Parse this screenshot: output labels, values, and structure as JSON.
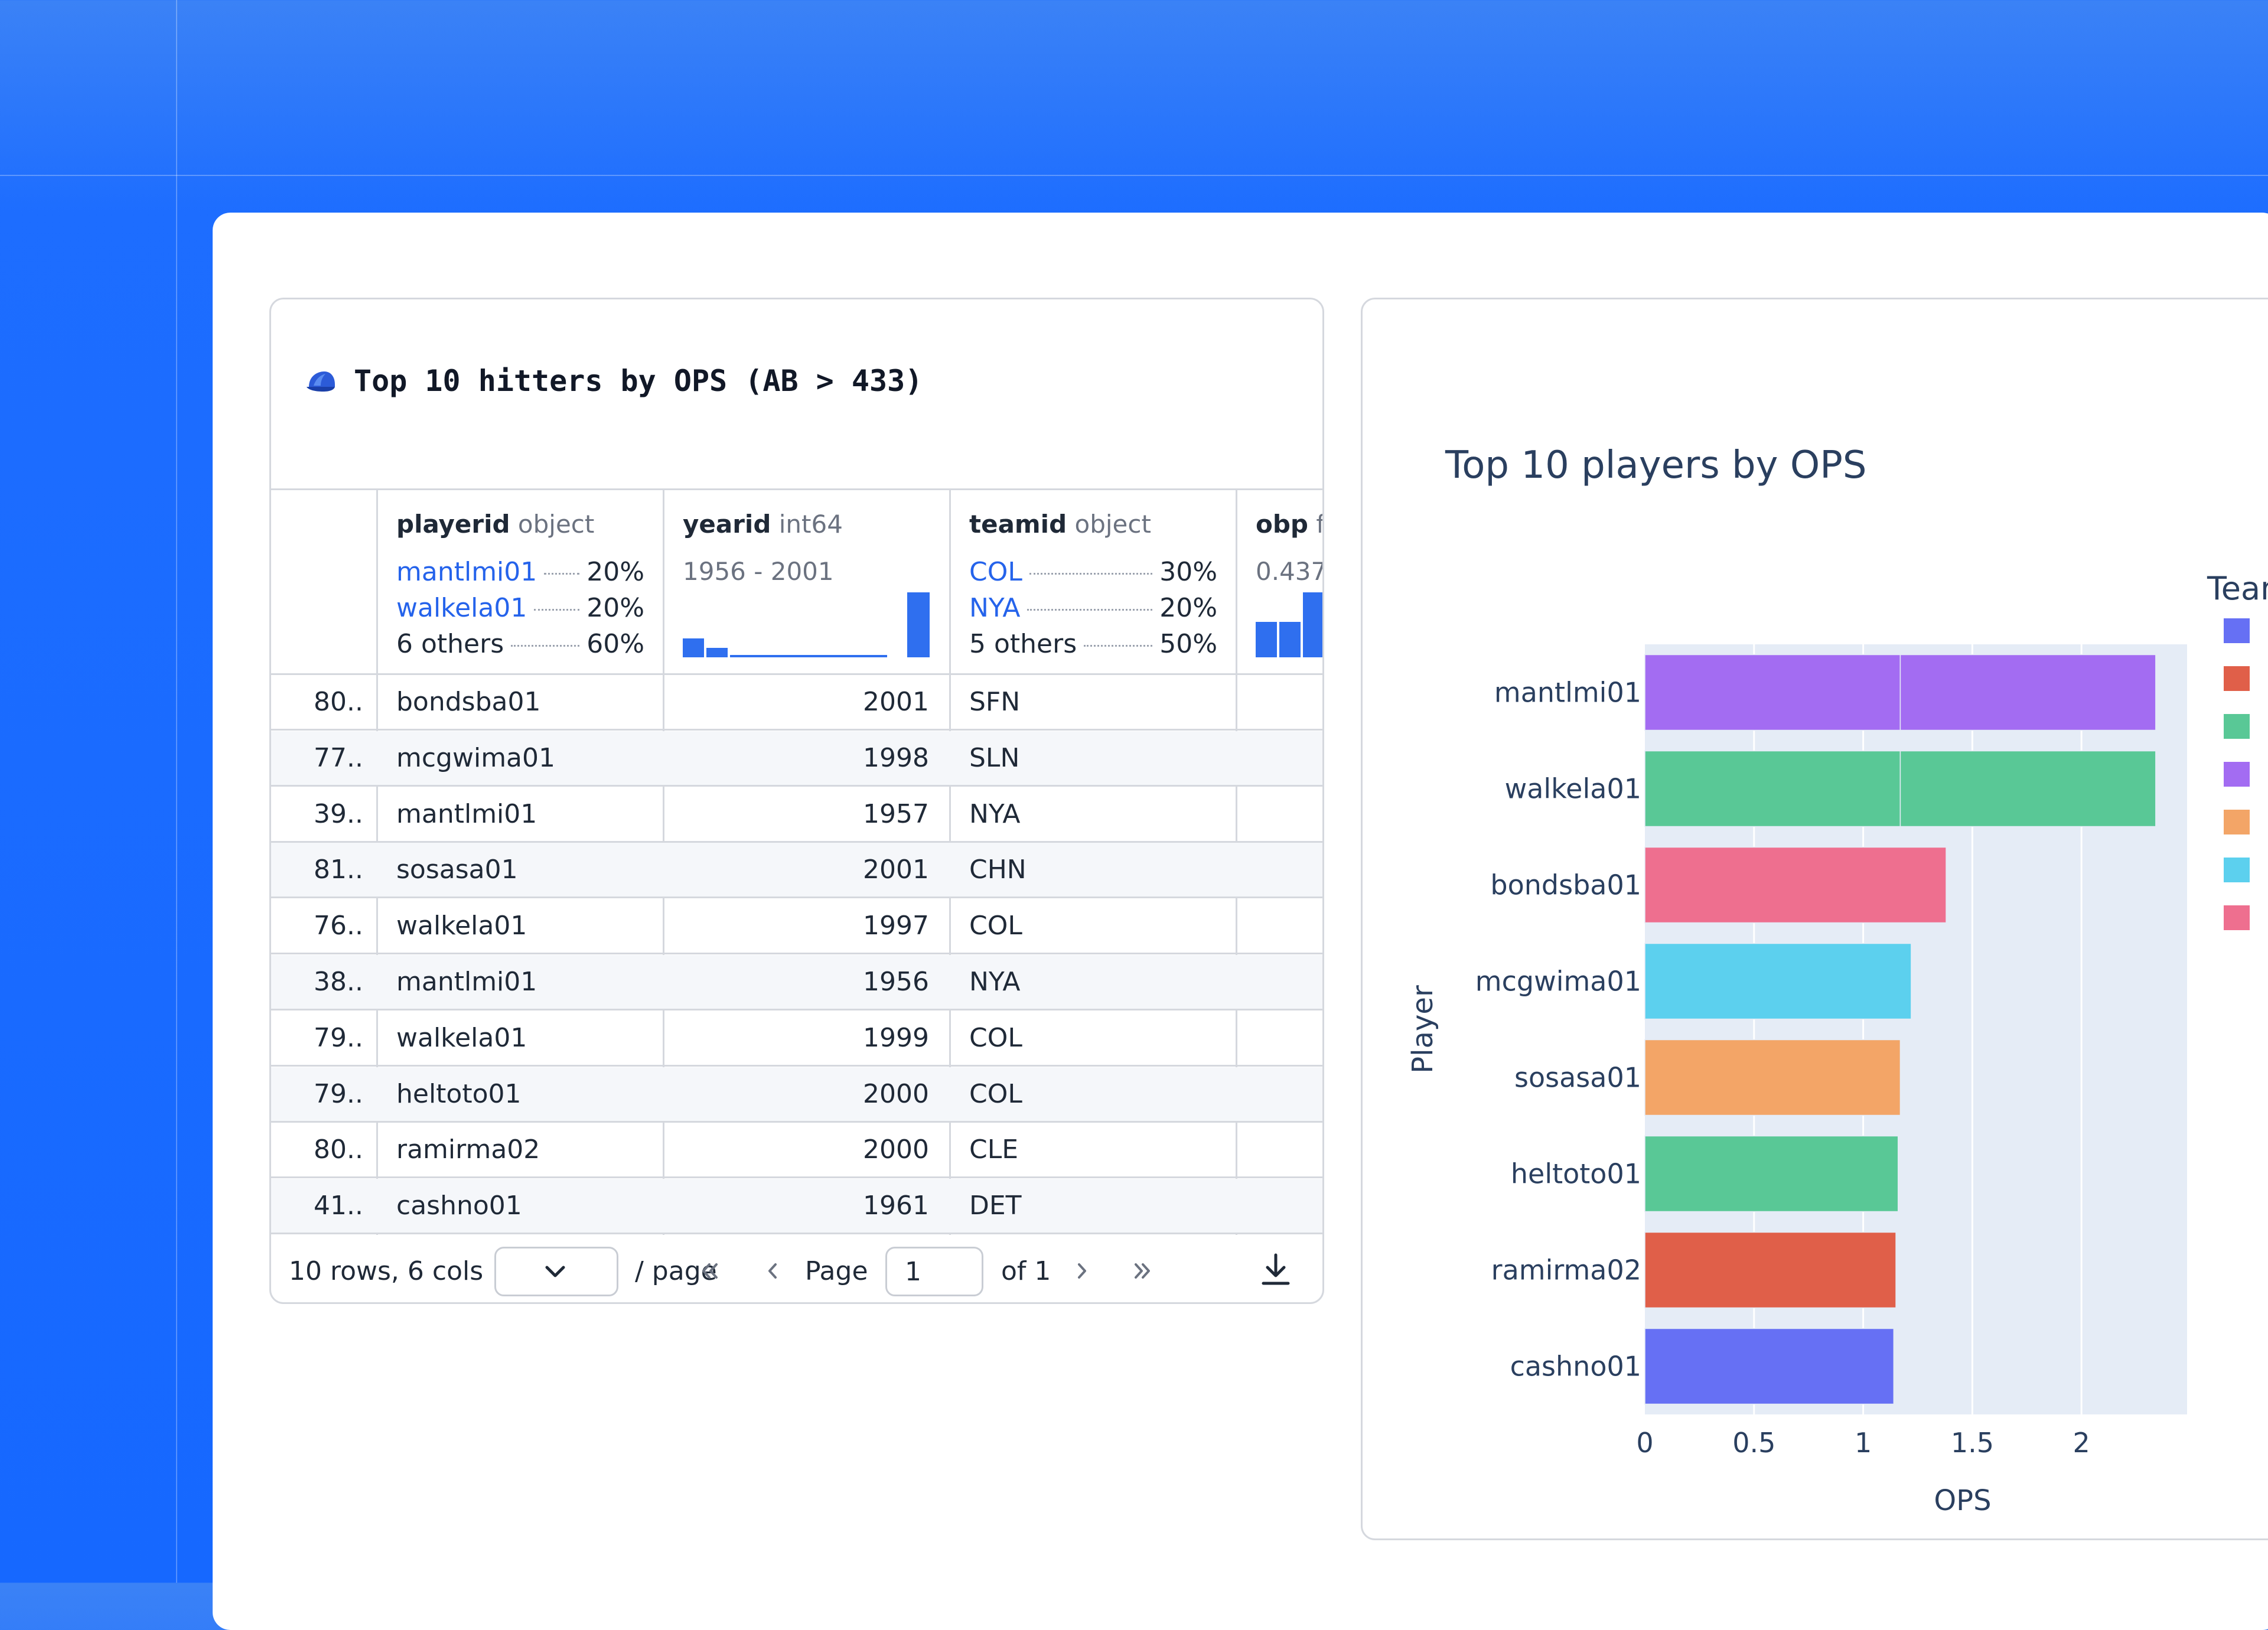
{
  "table": {
    "title": "Top 10 hitters by OPS (AB > 433)",
    "columns": [
      {
        "name": "playerid",
        "type": "object"
      },
      {
        "name": "yearid",
        "type": "int64"
      },
      {
        "name": "teamid",
        "type": "object"
      },
      {
        "name": "obp",
        "type": "f"
      }
    ],
    "playerid_summary": [
      {
        "label": "mantlmi01",
        "pct": "20%"
      },
      {
        "label": "walkela01",
        "pct": "20%"
      },
      {
        "label": "6 others",
        "pct": "60%"
      }
    ],
    "yearid_range": "1956 - 2001",
    "teamid_summary": [
      {
        "label": "COL",
        "pct": "30%"
      },
      {
        "label": "NYA",
        "pct": "20%"
      },
      {
        "label": "5 others",
        "pct": "50%"
      }
    ],
    "obp_range": "0.437",
    "rows": [
      {
        "idx": "80..",
        "playerid": "bondsba01",
        "yearid": "2001",
        "teamid": "SFN"
      },
      {
        "idx": "77..",
        "playerid": "mcgwima01",
        "yearid": "1998",
        "teamid": "SLN"
      },
      {
        "idx": "39..",
        "playerid": "mantlmi01",
        "yearid": "1957",
        "teamid": "NYA"
      },
      {
        "idx": "81..",
        "playerid": "sosasa01",
        "yearid": "2001",
        "teamid": "CHN"
      },
      {
        "idx": "76..",
        "playerid": "walkela01",
        "yearid": "1997",
        "teamid": "COL"
      },
      {
        "idx": "38..",
        "playerid": "mantlmi01",
        "yearid": "1956",
        "teamid": "NYA"
      },
      {
        "idx": "79..",
        "playerid": "walkela01",
        "yearid": "1999",
        "teamid": "COL"
      },
      {
        "idx": "79..",
        "playerid": "heltoto01",
        "yearid": "2000",
        "teamid": "COL"
      },
      {
        "idx": "80..",
        "playerid": "ramirma02",
        "yearid": "2000",
        "teamid": "CLE"
      },
      {
        "idx": "41..",
        "playerid": "cashno01",
        "yearid": "1961",
        "teamid": "DET"
      }
    ],
    "footer": {
      "rows_cols": "10 rows, 6 cols",
      "per_page": "/ page",
      "page_label": "Page",
      "page_value": "1",
      "of_label": "of 1"
    }
  },
  "icons": [
    "cap-icon",
    "chevron-down-icon",
    "first-page-icon",
    "prev-page-icon",
    "next-page-icon",
    "last-page-icon",
    "download-icon"
  ],
  "chart_data": {
    "type": "bar",
    "orientation": "horizontal",
    "title": "Top 10 players by OPS",
    "xlabel": "OPS",
    "ylabel": "Player",
    "legend_title": "Team",
    "legend_placement": "right",
    "xlim": [
      0,
      2.5
    ],
    "xticks": [
      "0",
      "0.5",
      "1",
      "1.5",
      "2"
    ],
    "grid": true,
    "categories": [
      "mantlmi01",
      "walkela01",
      "bondsba01",
      "mcgwima01",
      "sosasa01",
      "heltoto01",
      "ramirma02",
      "cashno01"
    ],
    "values": [
      2.34,
      2.34,
      1.38,
      1.22,
      1.17,
      1.16,
      1.15,
      1.14
    ],
    "segments": [
      [
        1.17,
        1.17
      ],
      [
        1.17,
        1.17
      ],
      [
        1.38
      ],
      [
        1.22
      ],
      [
        1.17
      ],
      [
        1.16
      ],
      [
        1.15
      ],
      [
        1.14
      ]
    ],
    "bar_colors": [
      "#a36cf2",
      "#59c896",
      "#ee6f8f",
      "#5cd0ee",
      "#f3a567",
      "#59c896",
      "#e05f49",
      "#6670f4"
    ],
    "legend_colors": [
      "#6670f4",
      "#e05f49",
      "#59c896",
      "#a36cf2",
      "#f3a567",
      "#5cd0ee",
      "#ee6f8f"
    ]
  }
}
